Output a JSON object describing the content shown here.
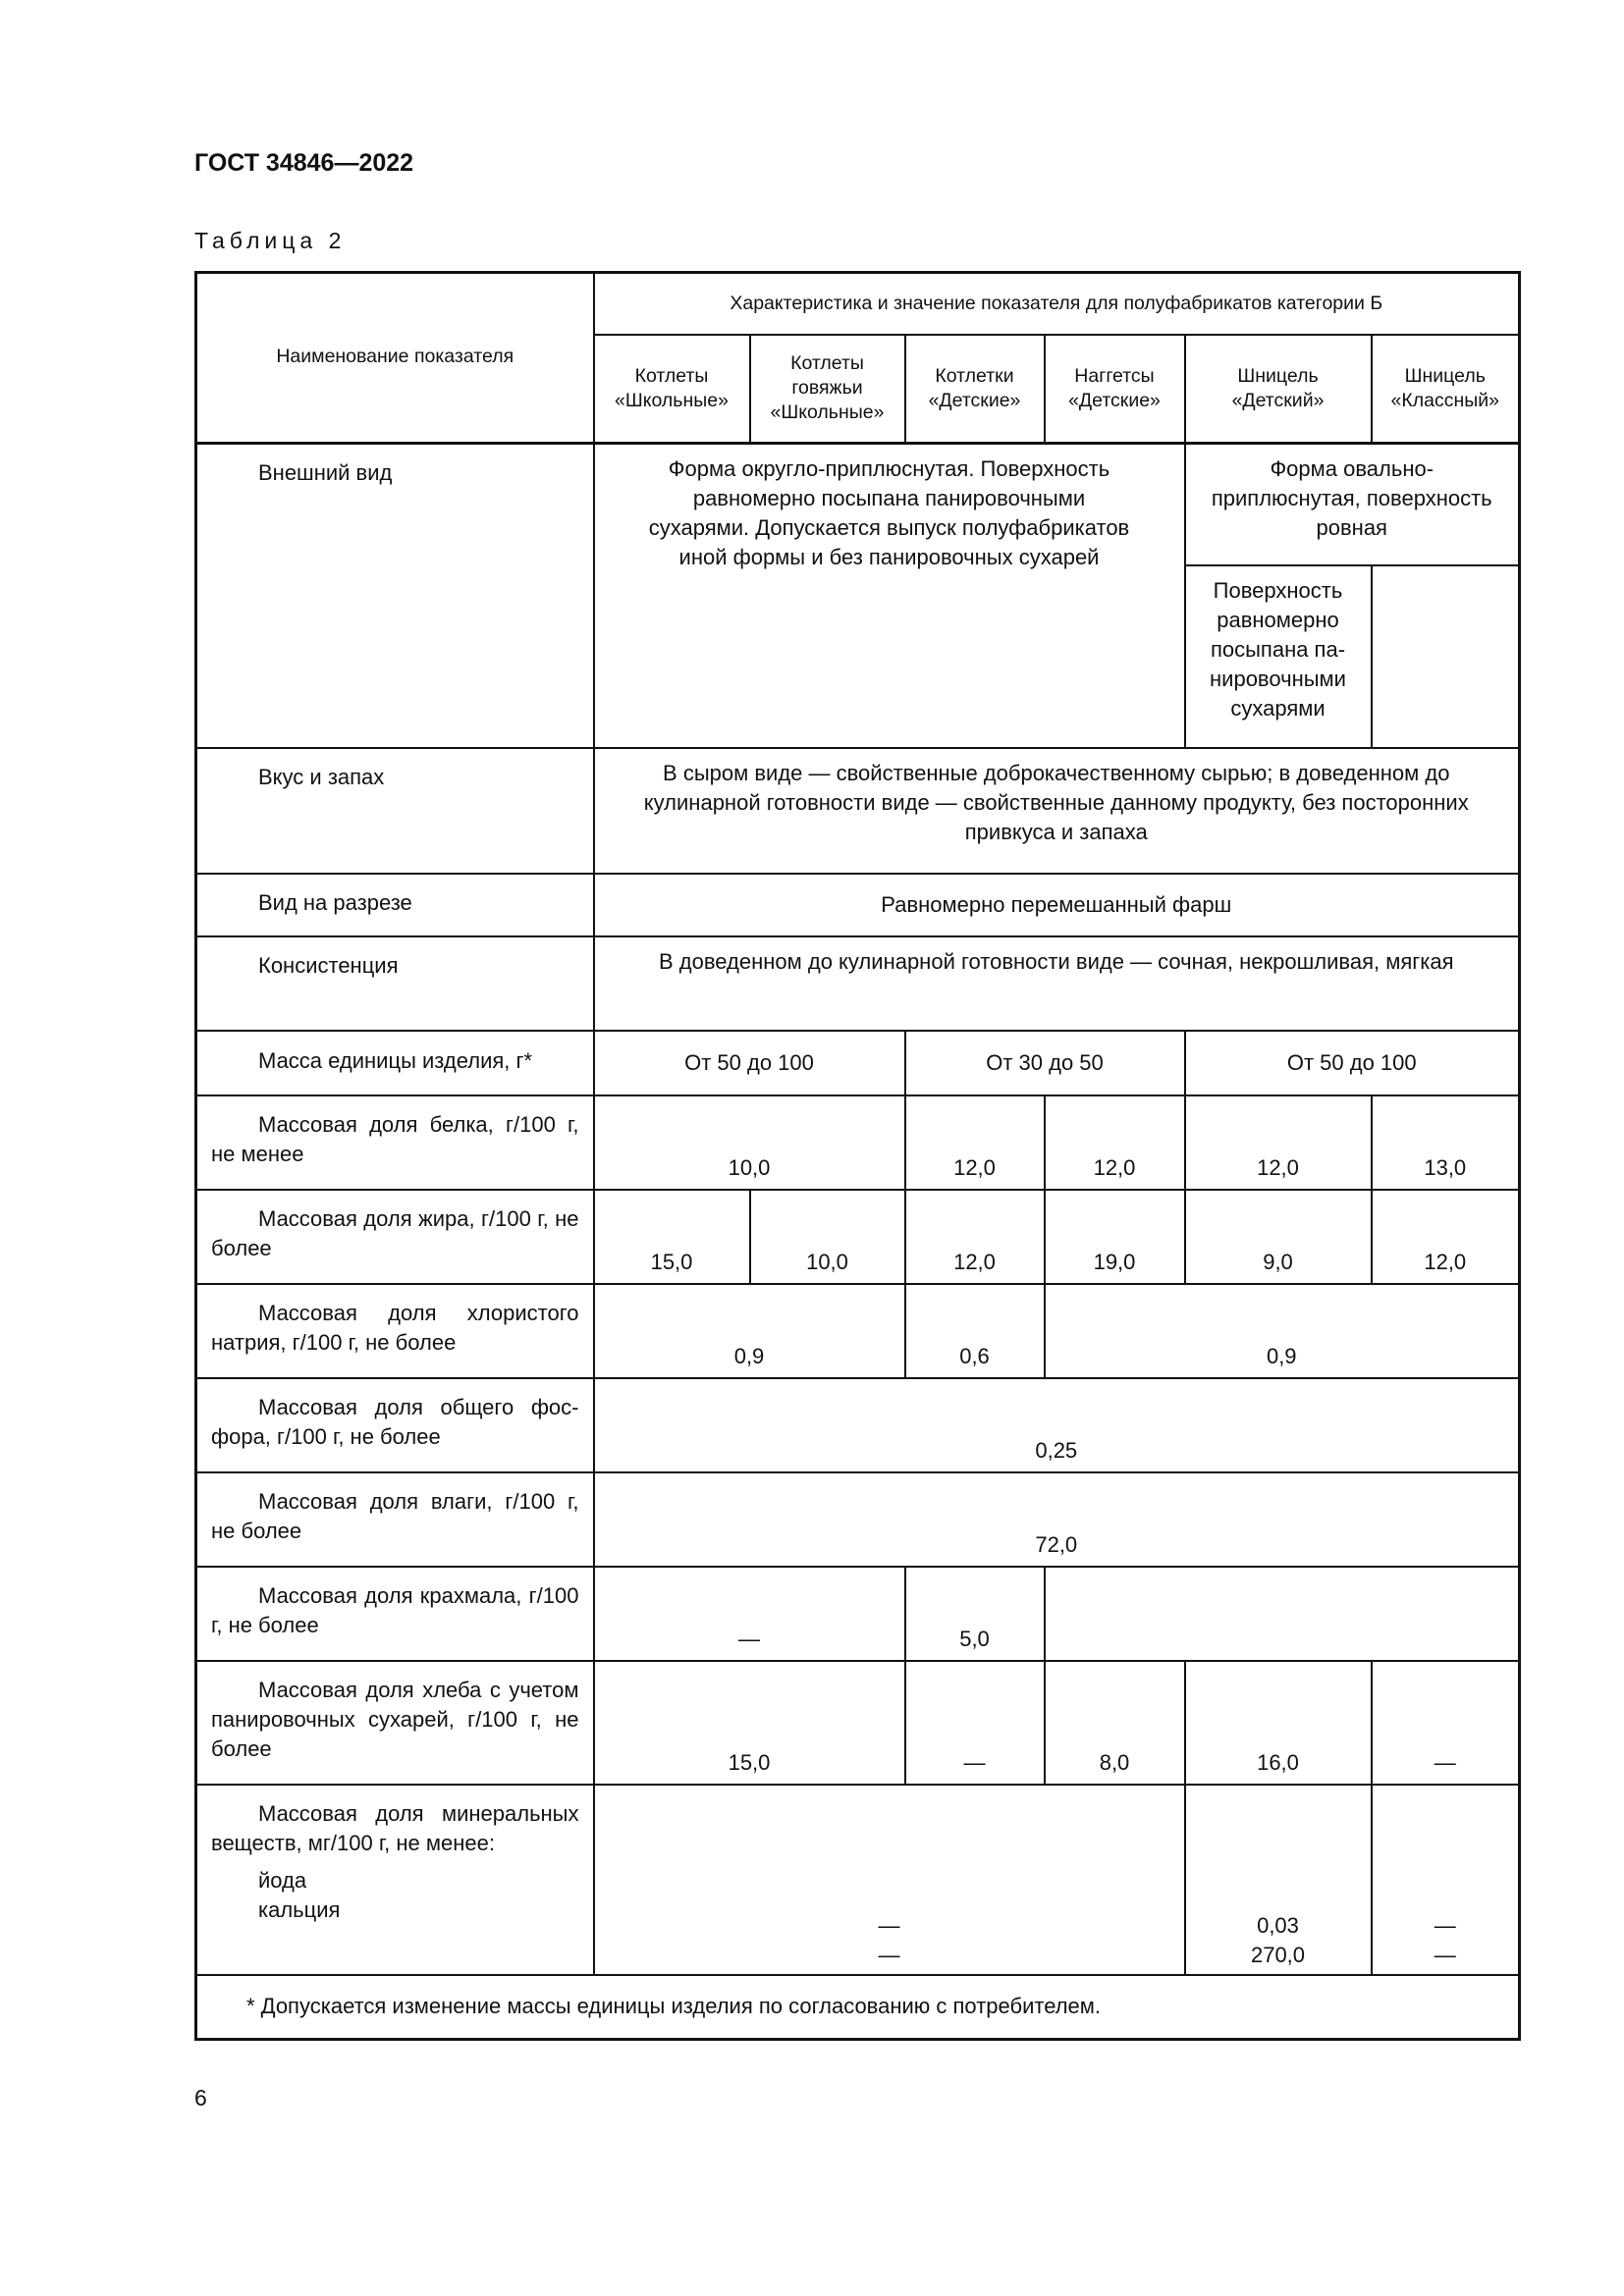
{
  "doc_title": "ГОСТ 34846—2022",
  "table_caption": "Таблица 2",
  "page_number": "6",
  "table": {
    "header": {
      "param": "Наименование показателя",
      "group": "Характеристика и значение показателя для полуфабрикатов категории Б",
      "products": [
        "Котлеты «Школьные»",
        "Котлеты говяжьи «Школьные»",
        "Котлетки «Детские»",
        "Наггетсы «Детские»",
        "Шницель «Детский»",
        "Шницель «Классный»"
      ]
    },
    "rows": {
      "appearance": {
        "name": "Внешний вид",
        "main": "Форма округло-приплюснутая. Поверхность равномерно посыпана панировочными сухарями. Допускается выпуск полуфабрикатов иной формы и без панировочных сухарей",
        "schnitzel": "Форма овально-приплюснутая, поверхность ровная",
        "schnitzel_child": "Поверхность равномерно посыпана па­нировочными сухарями"
      },
      "taste": {
        "name": "Вкус и запах",
        "value": "В сыром виде — свойственные доброкачественному сырью; в доведенном до кулинарной готовности виде — свойственные данному продукту, без посторонних привкуса и запаха"
      },
      "cut": {
        "name": "Вид на разрезе",
        "value": "Равномерно перемешанный фарш"
      },
      "consistency": {
        "name": "Консистенция",
        "value": "В доведенном до кулинарной готовности виде — сочная, некрошливая, мягкая"
      },
      "mass": {
        "name": "Масса единицы изделия, г*",
        "values": [
          "От 50 до 100",
          "От 30 до 50",
          "От 50 до 100"
        ]
      },
      "protein": {
        "name": "Массовая доля белка, г/100 г, не менее",
        "values": [
          "10,0",
          "12,0",
          "12,0",
          "12,0",
          "13,0"
        ]
      },
      "fat": {
        "name": "Массовая доля жира, г/100 г, не более",
        "values": [
          "15,0",
          "10,0",
          "12,0",
          "19,0",
          "9,0",
          "12,0"
        ]
      },
      "salt": {
        "name": "Массовая доля хлористого натрия, г/100 г, не более",
        "values": [
          "0,9",
          "0,6",
          "0,9"
        ]
      },
      "phosphorus": {
        "name": "Массовая доля общего фос­фора, г/100 г, не более",
        "value": "0,25"
      },
      "moisture": {
        "name": "Массовая доля влаги, г/100 г, не более",
        "value": "72,0"
      },
      "starch": {
        "name": "Массовая доля крахмала, г/100 г, не более",
        "values": [
          "—",
          "5,0"
        ]
      },
      "bread": {
        "name": "Массовая доля хлеба с уче­том панировочных сухарей, г/100 г, не более",
        "values": [
          "15,0",
          "—",
          "8,0",
          "16,0",
          "—"
        ]
      },
      "minerals": {
        "name": "Массовая доля минераль­ных веществ, мг/100 г, не ме­нее:",
        "iodine": {
          "name": "йода",
          "values": [
            "—",
            "0,03",
            "—"
          ]
        },
        "calcium": {
          "name": "кальция",
          "values": [
            "—",
            "270,0",
            "—"
          ]
        }
      }
    },
    "footnote": "* Допускается изменение массы единицы изделия по согласованию с потребителем."
  }
}
